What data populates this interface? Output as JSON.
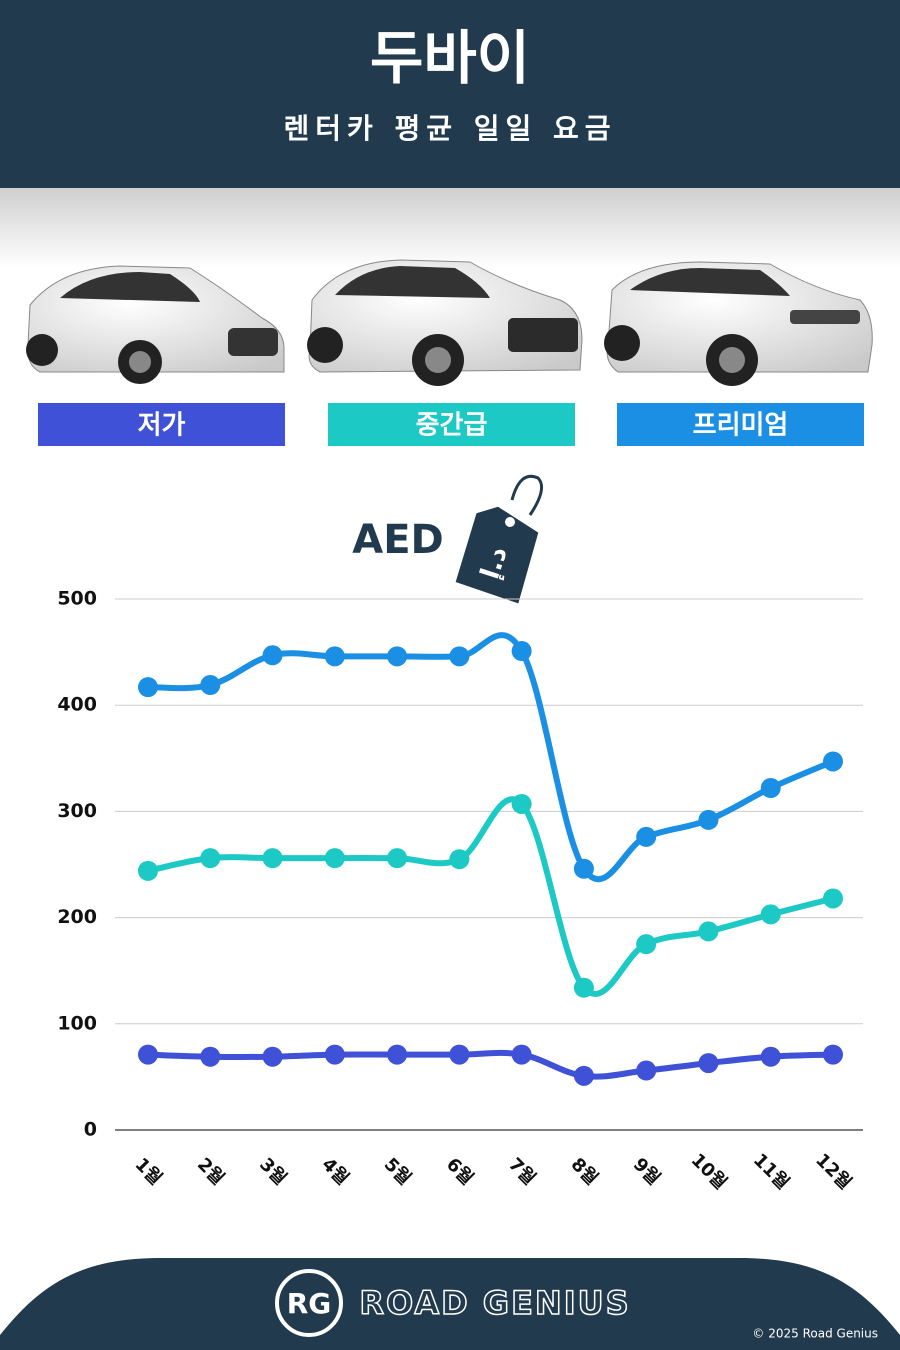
{
  "chart_data": {
    "type": "line",
    "title": "두바이",
    "subtitle": "렌터카 평균 일일 요금",
    "y_label": "AED",
    "currency_symbol": "د.إ",
    "categories": [
      "1월",
      "2월",
      "3월",
      "4월",
      "5월",
      "6월",
      "7월",
      "8월",
      "9월",
      "10월",
      "11월",
      "12월"
    ],
    "series": [
      {
        "name": "저가",
        "color": "#3f51d6",
        "values": [
          71,
          69,
          69,
          71,
          71,
          71,
          71,
          51,
          56,
          63,
          69,
          71
        ]
      },
      {
        "name": "중간급",
        "color": "#1cc9c4",
        "values": [
          244,
          256,
          256,
          256,
          256,
          255,
          307,
          134,
          175,
          187,
          203,
          218
        ]
      },
      {
        "name": "프리미엄",
        "color": "#1a8fe3",
        "values": [
          417,
          419,
          447,
          446,
          446,
          446,
          451,
          246,
          276,
          292,
          322,
          347
        ]
      }
    ],
    "ylim": [
      0,
      500
    ],
    "yticks": [
      0,
      100,
      200,
      300,
      400,
      500
    ],
    "grid": true
  },
  "footer": {
    "logo": "RG",
    "brand": "ROAD GENIUS",
    "copyright": "© 2025 Road Genius"
  }
}
